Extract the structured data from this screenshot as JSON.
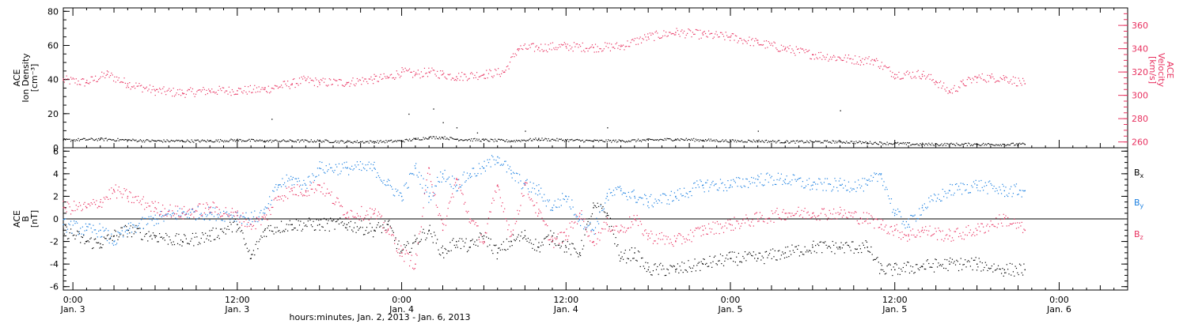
{
  "colors": {
    "black": "#000000",
    "pink": "#e8305f",
    "blue": "#1a7fe0"
  },
  "xaxis": {
    "label": "hours:minutes, Jan. 2, 2013 - Jan. 6, 2013",
    "ticks": [
      {
        "hours": 0,
        "time": "0:00",
        "date": "Jan. 3"
      },
      {
        "hours": 12,
        "time": "12:00",
        "date": "Jan. 3"
      },
      {
        "hours": 24,
        "time": "0:00",
        "date": "Jan. 4"
      },
      {
        "hours": 36,
        "time": "12:00",
        "date": "Jan. 4"
      },
      {
        "hours": 48,
        "time": "0:00",
        "date": "Jan. 5"
      },
      {
        "hours": 60,
        "time": "12:00",
        "date": "Jan. 5"
      },
      {
        "hours": 72,
        "time": "0:00",
        "date": "Jan. 6"
      }
    ]
  },
  "chart_data": [
    {
      "type": "scatter",
      "x_range_hours": [
        -0.7,
        77
      ],
      "left_axis": {
        "label_line1": "ACE",
        "label_line2": "Ion Density",
        "label_line3": "[cm⁻³]",
        "ylim": [
          0,
          82
        ],
        "ticks": [
          0,
          20,
          40,
          60,
          80
        ]
      },
      "right_axis": {
        "label_line1": "ACE",
        "label_line2": "Velocity",
        "label_line3": "[km/s]",
        "ylim": [
          255,
          375
        ],
        "ticks": [
          260,
          280,
          300,
          320,
          340,
          360
        ]
      },
      "series": [
        {
          "key": "density",
          "axis": "left",
          "color": "black",
          "x": [
            -0.7,
            2,
            4,
            6,
            8,
            10,
            12,
            14,
            16,
            18,
            20,
            22,
            24,
            25,
            26,
            27,
            28,
            30,
            32,
            34,
            36,
            38,
            40,
            42,
            44,
            46,
            48,
            50,
            52,
            54,
            56,
            58,
            60,
            62,
            64,
            66,
            68,
            69.5
          ],
          "y": [
            4.5,
            5,
            4.5,
            4,
            4,
            4,
            4.5,
            4,
            4,
            4,
            3.5,
            3.5,
            4,
            5,
            6,
            6,
            5,
            4.5,
            4,
            5,
            4.5,
            4,
            4,
            4.5,
            5,
            4.5,
            4,
            4,
            3.5,
            3.5,
            3.5,
            3,
            2.5,
            2,
            2,
            2,
            2,
            2
          ]
        },
        {
          "key": "velocity",
          "axis": "right",
          "color": "pink",
          "x": [
            -0.7,
            1,
            2.5,
            4,
            6,
            8,
            10,
            12,
            14,
            16,
            17,
            18,
            20,
            22,
            23,
            24,
            25,
            26,
            27,
            28,
            30,
            31.5,
            32.5,
            34,
            36,
            38,
            40,
            42,
            44,
            46,
            48,
            50,
            52,
            54,
            56,
            57.5,
            58.5,
            60,
            62,
            63,
            64,
            65,
            66,
            67,
            68,
            69.5
          ],
          "y": [
            313,
            311,
            318,
            310,
            304,
            302,
            304,
            304,
            305,
            310,
            313,
            311,
            311,
            314,
            315,
            320,
            318,
            320,
            318,
            316,
            318,
            320,
            340,
            341,
            342,
            341,
            342,
            350,
            354,
            352,
            350,
            345,
            340,
            335,
            332,
            330,
            330,
            318,
            318,
            312,
            303,
            310,
            315,
            315,
            315,
            310
          ]
        }
      ]
    },
    {
      "type": "scatter",
      "x_range_hours": [
        -0.7,
        77
      ],
      "left_axis": {
        "label_line1": "ACE",
        "label_line2": "B",
        "label_line3": "[nT]",
        "ylim": [
          -6.3,
          6.3
        ],
        "ticks": [
          -6,
          -4,
          -2,
          0,
          2,
          4,
          6
        ]
      },
      "legend_placement": "right",
      "series": [
        {
          "key": "bx",
          "name": "B",
          "sub": "x",
          "color": "black",
          "x": [
            -0.7,
            1,
            2,
            3,
            4,
            6,
            8,
            10,
            12,
            13,
            14,
            16,
            18,
            20,
            22,
            23,
            24,
            25,
            26,
            27,
            28,
            29,
            30,
            31,
            32,
            33,
            34,
            35,
            36,
            37,
            38,
            39,
            40,
            41,
            42,
            44,
            46,
            48,
            50,
            52,
            54,
            56,
            58,
            59,
            60,
            62,
            64,
            66,
            68,
            69.5
          ],
          "y": [
            -1,
            -2,
            -2.2,
            -1.5,
            -1,
            -1.5,
            -2,
            -1.5,
            -0.5,
            -3.5,
            -1,
            -0.5,
            -0.5,
            -0.5,
            -1,
            -0.5,
            -3,
            -2,
            -1,
            -3,
            -2,
            -2.5,
            -1.5,
            -3,
            -2,
            -1.5,
            -2.5,
            -1.5,
            -2.5,
            -3,
            1,
            0.5,
            -3.5,
            -3,
            -4.5,
            -4.5,
            -4,
            -3.5,
            -3.5,
            -3,
            -2.5,
            -2.5,
            -2.5,
            -4.5,
            -4.5,
            -4.2,
            -4,
            -4,
            -4.5,
            -4.5
          ]
        },
        {
          "key": "by",
          "name": "B",
          "sub": "y",
          "color": "blue",
          "x": [
            -0.7,
            1,
            2,
            3,
            4,
            6,
            8,
            10,
            12,
            13,
            14,
            15,
            16,
            17,
            18,
            20,
            22,
            23,
            24,
            25,
            26,
            27,
            28,
            29,
            30,
            31,
            32,
            33,
            34,
            35,
            36,
            37,
            38,
            39,
            40,
            41,
            42,
            44,
            46,
            48,
            50,
            52,
            54,
            56,
            58,
            59,
            60,
            61,
            62,
            64,
            66,
            68,
            69.5
          ],
          "y": [
            -0.5,
            -1,
            -1,
            -2,
            -1,
            0,
            0.5,
            0.5,
            0.3,
            0,
            0.5,
            3,
            3.5,
            3,
            4.5,
            4.5,
            4.5,
            3,
            2,
            4.5,
            2,
            4,
            3,
            4,
            4.5,
            5.5,
            4,
            3,
            2.5,
            1,
            2,
            0,
            -1,
            2,
            2.5,
            2,
            1.5,
            2,
            3,
            3,
            3.5,
            3.5,
            3,
            3,
            3,
            4,
            0.5,
            -0.5,
            1,
            2.5,
            3,
            2.5,
            2.5
          ]
        },
        {
          "key": "bz",
          "name": "B",
          "sub": "z",
          "color": "pink",
          "x": [
            -0.7,
            1,
            2,
            3,
            4,
            6,
            8,
            10,
            12,
            13,
            14,
            15,
            16,
            17,
            18,
            20,
            22,
            23,
            24,
            25,
            26,
            27,
            28,
            29,
            30,
            31,
            32,
            33,
            34,
            35,
            36,
            37,
            38,
            39,
            40,
            41,
            42,
            44,
            46,
            48,
            50,
            52,
            54,
            56,
            58,
            59,
            60,
            61,
            62,
            64,
            66,
            68,
            69.5
          ],
          "y": [
            1,
            1,
            1.5,
            2.5,
            2,
            1,
            0.5,
            1,
            0.3,
            -0.5,
            0,
            2,
            2.5,
            2.5,
            3,
            0.5,
            0.5,
            -1,
            -3,
            -4,
            4.5,
            -1,
            3.5,
            0,
            -2,
            3,
            -1.5,
            3,
            0.5,
            -2,
            -1.5,
            0.5,
            -2,
            -0.5,
            -1,
            0,
            -1.5,
            -2,
            -1,
            -0.5,
            0,
            0.5,
            0.5,
            0.5,
            0,
            -0.5,
            -1,
            -1.5,
            -1,
            -1.5,
            -1,
            0,
            -1
          ]
        }
      ]
    }
  ]
}
